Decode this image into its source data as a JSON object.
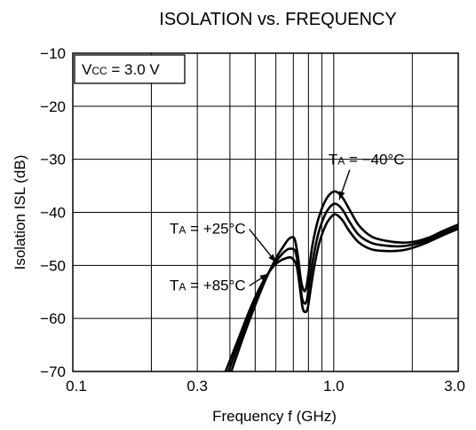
{
  "chart_data": {
    "type": "line",
    "title": "ISOLATION vs. FREQUENCY",
    "xlabel": "Frequency  f  (GHz)",
    "ylabel": "Isolation  ISL  (dB)",
    "x_scale": "log",
    "xlim": [
      0.1,
      3.0
    ],
    "ylim": [
      -70,
      -10
    ],
    "x_ticks": [
      0.1,
      0.3,
      1.0,
      3.0
    ],
    "x_tick_labels": [
      "0.1",
      "0.3",
      "1.0",
      "3.0"
    ],
    "x_gridlines": [
      0.1,
      0.2,
      0.3,
      0.4,
      0.5,
      0.6,
      0.7,
      0.8,
      0.9,
      1.0,
      2.0,
      3.0
    ],
    "y_ticks": [
      -10,
      -20,
      -30,
      -40,
      -50,
      -60,
      -70
    ],
    "y_tick_labels": [
      "−10",
      "−20",
      "−30",
      "−40",
      "−50",
      "−60",
      "−70"
    ],
    "grid": true,
    "condition": {
      "main": "V",
      "sub": "CC",
      "rest": " = 3.0 V"
    },
    "series": [
      {
        "name": "TA = −40°C",
        "x": [
          0.405,
          0.45,
          0.5,
          0.55,
          0.6,
          0.64,
          0.67,
          0.695,
          0.71,
          0.73,
          0.75,
          0.77,
          0.785,
          0.8,
          0.83,
          0.87,
          0.92,
          0.97,
          1.02,
          1.08,
          1.15,
          1.25,
          1.4,
          1.6,
          1.8,
          2.0,
          2.3,
          2.6,
          3.0
        ],
        "y": [
          -70,
          -63.5,
          -57.5,
          -52.5,
          -48.7,
          -46.5,
          -45.1,
          -44.7,
          -45.2,
          -48.5,
          -53,
          -54.8,
          -54.2,
          -51.5,
          -46,
          -41.5,
          -38.2,
          -36.5,
          -36.1,
          -37.2,
          -39.5,
          -42.5,
          -44.6,
          -45.4,
          -45.7,
          -45.6,
          -44.8,
          -43.6,
          -42.3
        ]
      },
      {
        "name": "TA = +25°C",
        "x": [
          0.395,
          0.44,
          0.49,
          0.54,
          0.59,
          0.63,
          0.665,
          0.695,
          0.715,
          0.735,
          0.755,
          0.775,
          0.79,
          0.805,
          0.835,
          0.875,
          0.925,
          0.975,
          1.02,
          1.08,
          1.15,
          1.25,
          1.4,
          1.6,
          1.8,
          2.0,
          2.3,
          2.6,
          3.0
        ],
        "y": [
          -70,
          -63.7,
          -57.7,
          -53,
          -49.8,
          -48,
          -47,
          -46.9,
          -47.6,
          -51.2,
          -56,
          -57.2,
          -56.4,
          -53.5,
          -48.5,
          -43.8,
          -40.5,
          -38.8,
          -38.4,
          -39.5,
          -41.8,
          -44.3,
          -45.8,
          -46.3,
          -46.4,
          -46.1,
          -45.2,
          -44,
          -42.8
        ]
      },
      {
        "name": "TA = +85°C",
        "x": [
          0.385,
          0.43,
          0.48,
          0.53,
          0.58,
          0.62,
          0.66,
          0.69,
          0.72,
          0.74,
          0.76,
          0.78,
          0.795,
          0.81,
          0.84,
          0.88,
          0.93,
          0.98,
          1.02,
          1.08,
          1.15,
          1.25,
          1.4,
          1.6,
          1.8,
          2.0,
          2.3,
          2.6,
          3.0
        ],
        "y": [
          -70,
          -64,
          -58,
          -53.5,
          -50.5,
          -49.2,
          -48.6,
          -48.6,
          -50,
          -53.8,
          -58,
          -58.8,
          -58,
          -55.5,
          -50.5,
          -45.8,
          -42.5,
          -40.8,
          -40.4,
          -41.5,
          -43.6,
          -45.7,
          -47,
          -47.3,
          -47.2,
          -46.7,
          -45.6,
          -44.4,
          -43.1
        ]
      }
    ],
    "annotations": [
      {
        "main": "T",
        "sub": "A",
        "rest": " = −40°C",
        "target_series": 0,
        "x": 1.0,
        "y": -31,
        "arrow_to": [
          1.05,
          -37.6
        ]
      },
      {
        "main": "T",
        "sub": "A",
        "rest": " = +25°C",
        "target_series": 1,
        "x": 0.46,
        "y": -44,
        "arrow_to": [
          0.6,
          -49.4
        ]
      },
      {
        "main": "T",
        "sub": "A",
        "rest": " = +85°C",
        "target_series": 2,
        "x": 0.46,
        "y": -54.7,
        "arrow_to": [
          0.56,
          -51.6
        ]
      }
    ]
  }
}
